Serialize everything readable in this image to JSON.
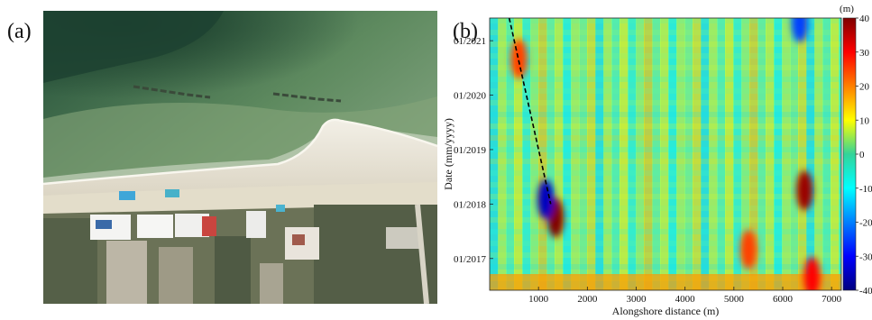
{
  "figure": {
    "panel_a_label": "(a)",
    "panel_b_label": "(b)"
  },
  "photo": {
    "subject": "aerial-coastal-photo",
    "colors": {
      "deep_water": "#1f4a35",
      "shallow_water": "#7a9d6f",
      "surf": "#b9c9b2",
      "sand": "#e6e1d2",
      "vegetation": "#5d6b4d"
    }
  },
  "chart_data": {
    "type": "heatmap",
    "xlabel": "Alongshore distance (m)",
    "ylabel": "Date (mm/yyyy)",
    "x_ticks": [
      1000,
      2000,
      3000,
      4000,
      5000,
      6000,
      7000
    ],
    "xlim": [
      0,
      7200
    ],
    "y_ticks": [
      "01/2017",
      "01/2018",
      "01/2019",
      "01/2020",
      "01/2021"
    ],
    "ylim": [
      "06/2016",
      "06/2021"
    ],
    "colorbar": {
      "unit": "(m)",
      "ticks": [
        40,
        30,
        20,
        10,
        0,
        -10,
        -20,
        -30,
        -40
      ],
      "range": [
        -40,
        40
      ],
      "colormap": "jet"
    },
    "trend_line": {
      "style": "dashed",
      "start": {
        "x": 400,
        "date": "06/2021"
      },
      "end": {
        "x": 1250,
        "date": "01/2018"
      }
    },
    "hotspots": [
      {
        "x": 1350,
        "date": "10/2017",
        "value": 40
      },
      {
        "x": 1150,
        "date": "02/2018",
        "value": -35
      },
      {
        "x": 6450,
        "date": "04/2018",
        "value": 38
      },
      {
        "x": 6350,
        "date": "05/2021",
        "value": -25
      },
      {
        "x": 600,
        "date": "09/2020",
        "value": 25
      },
      {
        "x": 6600,
        "date": "09/2016",
        "value": 30
      },
      {
        "x": 5300,
        "date": "03/2017",
        "value": 25
      }
    ]
  }
}
